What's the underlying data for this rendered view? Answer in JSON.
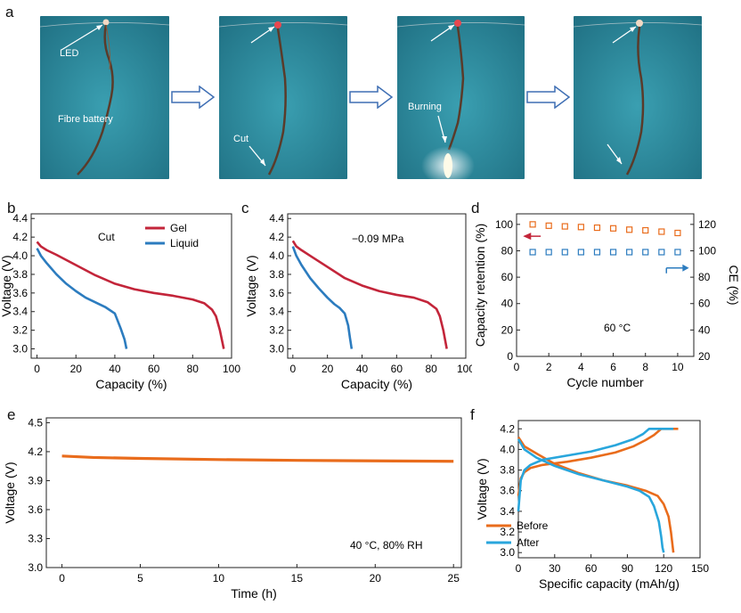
{
  "panel_letters": {
    "a": "a",
    "b": "b",
    "c": "c",
    "d": "d",
    "e": "e",
    "f": "f"
  },
  "photos": [
    {
      "labels": [
        {
          "text": "LED"
        },
        {
          "text": "Fibre battery"
        }
      ]
    },
    {
      "labels": [
        {
          "text": "Cut"
        }
      ]
    },
    {
      "labels": [
        {
          "text": "Burning"
        }
      ]
    },
    {
      "labels": []
    }
  ],
  "colors": {
    "photo_bg": "#2f8ea0",
    "gel": "#c3253a",
    "liquid": "#2c7cbf",
    "orange": "#e96c1c",
    "blue": "#29a6dc"
  },
  "chart_data": [
    {
      "id": "b",
      "type": "line",
      "annotation": "Cut",
      "xlabel": "Capacity (%)",
      "ylabel": "Voltage (V)",
      "xlim": [
        -3,
        100
      ],
      "ylim": [
        2.9,
        4.45
      ],
      "xticks": [
        "0",
        "20",
        "40",
        "60",
        "80",
        "100"
      ],
      "yticks": [
        "3.0",
        "3.2",
        "3.4",
        "3.6",
        "3.8",
        "4.0",
        "4.2",
        "4.4"
      ],
      "legend": "top-right",
      "series": [
        {
          "name": "Gel",
          "color": "#c3253a",
          "x": [
            0,
            2,
            5,
            10,
            20,
            30,
            40,
            50,
            60,
            70,
            80,
            86,
            90,
            92,
            94,
            95,
            96
          ],
          "y": [
            4.15,
            4.1,
            4.06,
            4.01,
            3.9,
            3.79,
            3.7,
            3.64,
            3.6,
            3.57,
            3.53,
            3.49,
            3.42,
            3.35,
            3.2,
            3.1,
            3.0
          ]
        },
        {
          "name": "Liquid",
          "color": "#2c7cbf",
          "x": [
            0,
            2,
            5,
            10,
            15,
            20,
            25,
            30,
            35,
            40,
            43,
            45,
            46
          ],
          "y": [
            4.08,
            4.0,
            3.92,
            3.8,
            3.7,
            3.62,
            3.55,
            3.5,
            3.45,
            3.38,
            3.22,
            3.1,
            3.0
          ]
        }
      ]
    },
    {
      "id": "c",
      "type": "line",
      "annotation": "−0.09 MPa",
      "xlabel": "Capacity (%)",
      "ylabel": "Voltage (V)",
      "xlim": [
        -3,
        100
      ],
      "ylim": [
        2.9,
        4.45
      ],
      "xticks": [
        "0",
        "20",
        "40",
        "60",
        "80",
        "100"
      ],
      "yticks": [
        "3.0",
        "3.2",
        "3.4",
        "3.6",
        "3.8",
        "4.0",
        "4.2",
        "4.4"
      ],
      "series": [
        {
          "color": "#c3253a",
          "x": [
            0,
            2,
            5,
            10,
            20,
            30,
            40,
            50,
            60,
            70,
            78,
            83,
            85,
            87,
            88,
            89
          ],
          "y": [
            4.16,
            4.1,
            4.06,
            4.0,
            3.88,
            3.76,
            3.68,
            3.62,
            3.58,
            3.55,
            3.5,
            3.43,
            3.35,
            3.2,
            3.1,
            3.0
          ]
        },
        {
          "color": "#2c7cbf",
          "x": [
            0,
            2,
            5,
            10,
            15,
            20,
            24,
            27,
            30,
            32,
            33,
            34
          ],
          "y": [
            4.1,
            4.0,
            3.9,
            3.76,
            3.65,
            3.55,
            3.48,
            3.44,
            3.38,
            3.25,
            3.12,
            3.0
          ]
        }
      ]
    },
    {
      "id": "d",
      "type": "scatter",
      "annotation": "60 °C",
      "xlabel": "Cycle number",
      "ylabel": "Capacity retention (%)",
      "y2label": "CE (%)",
      "xlim": [
        0,
        11
      ],
      "ylim": [
        0,
        108
      ],
      "y2lim": [
        20,
        128
      ],
      "xticks": [
        "0",
        "2",
        "4",
        "6",
        "8",
        "10"
      ],
      "yticks": [
        "0",
        "20",
        "40",
        "60",
        "80",
        "100"
      ],
      "y2ticks": [
        "20",
        "40",
        "60",
        "80",
        "100",
        "120"
      ],
      "series": [
        {
          "color": "#e96c1c",
          "axis": "left",
          "x": [
            1,
            2,
            3,
            4,
            5,
            6,
            7,
            8,
            9,
            10
          ],
          "y": [
            100,
            99,
            98.5,
            98,
            97.5,
            97,
            96,
            95.5,
            94.5,
            93.5
          ]
        },
        {
          "color": "#2c7cbf",
          "axis": "right",
          "x": [
            1,
            2,
            3,
            4,
            5,
            6,
            7,
            8,
            9,
            10
          ],
          "y": [
            99,
            99,
            99,
            99,
            99,
            99,
            99,
            99,
            99,
            99
          ]
        }
      ]
    },
    {
      "id": "e",
      "type": "line",
      "annotation": "40 °C, 80% RH",
      "xlabel": "Time (h)",
      "ylabel": "Voltage (V)",
      "xlim": [
        -1,
        25.5
      ],
      "ylim": [
        3.0,
        4.55
      ],
      "xticks": [
        "0",
        "5",
        "10",
        "15",
        "20",
        "25"
      ],
      "yticks": [
        "3.0",
        "3.3",
        "3.6",
        "3.9",
        "4.2",
        "4.5"
      ],
      "series": [
        {
          "color": "#e96c1c",
          "x": [
            0,
            2,
            5,
            10,
            15,
            20,
            25
          ],
          "y": [
            4.155,
            4.14,
            4.13,
            4.118,
            4.11,
            4.105,
            4.1
          ]
        }
      ]
    },
    {
      "id": "f",
      "type": "line",
      "xlabel": "Specific capacity (mAh/g)",
      "ylabel": "Voltage (V)",
      "xlim": [
        0,
        150
      ],
      "ylim": [
        2.95,
        4.28
      ],
      "xticks": [
        "0",
        "30",
        "60",
        "90",
        "120",
        "150"
      ],
      "yticks": [
        "3.0",
        "3.2",
        "3.4",
        "3.6",
        "3.8",
        "4.0",
        "4.2"
      ],
      "legend": "bottom-center",
      "series": [
        {
          "name": "Before",
          "color": "#e96c1c",
          "x": [
            0,
            2,
            5,
            10,
            20,
            40,
            60,
            80,
            95,
            105,
            112,
            118,
            130,
            132
          ],
          "y": [
            3.55,
            3.72,
            3.78,
            3.82,
            3.85,
            3.88,
            3.92,
            3.97,
            4.03,
            4.09,
            4.14,
            4.2,
            4.2,
            4.2
          ]
        },
        {
          "name": "Before",
          "color": "#e96c1c",
          "x": [
            0,
            5,
            15,
            30,
            50,
            70,
            90,
            105,
            115,
            120,
            124,
            126,
            127,
            128
          ],
          "y": [
            4.12,
            4.03,
            3.96,
            3.86,
            3.77,
            3.7,
            3.65,
            3.6,
            3.55,
            3.47,
            3.35,
            3.2,
            3.1,
            3.0
          ]
        },
        {
          "name": "After",
          "color": "#29a6dc",
          "x": [
            0,
            2,
            5,
            10,
            20,
            40,
            60,
            80,
            95,
            103,
            108,
            128
          ],
          "y": [
            3.4,
            3.7,
            3.8,
            3.85,
            3.9,
            3.94,
            3.98,
            4.04,
            4.1,
            4.15,
            4.2,
            4.2
          ]
        },
        {
          "name": "After",
          "color": "#29a6dc",
          "x": [
            0,
            5,
            15,
            30,
            50,
            70,
            90,
            100,
            108,
            112,
            116,
            118,
            119,
            120
          ],
          "y": [
            4.1,
            4.0,
            3.92,
            3.84,
            3.76,
            3.7,
            3.64,
            3.6,
            3.54,
            3.45,
            3.3,
            3.15,
            3.05,
            3.0
          ]
        }
      ],
      "legend_entries": [
        {
          "label": "Before",
          "color": "#e96c1c"
        },
        {
          "label": "After",
          "color": "#29a6dc"
        }
      ]
    }
  ]
}
